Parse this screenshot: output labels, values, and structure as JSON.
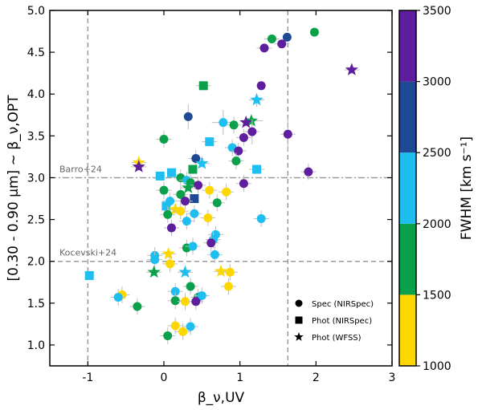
{
  "chart_data": {
    "type": "scatter",
    "xlabel": "β_ν,UV",
    "ylabel": "[0.30 - 0.90 μm] ~ β_ν,OPT",
    "xlim": [
      -1.5,
      3.0
    ],
    "ylim": [
      0.75,
      5.0
    ],
    "xticks": [
      -1,
      0,
      1,
      2,
      3
    ],
    "yticks": [
      1.0,
      1.5,
      2.0,
      2.5,
      3.0,
      3.5,
      4.0,
      4.5,
      5.0
    ],
    "reference_lines": [
      {
        "orientation": "horizontal",
        "value": 3.0,
        "style": "dashdot",
        "label": "Barro+24"
      },
      {
        "orientation": "horizontal",
        "value": 2.0,
        "style": "dashed",
        "label": "Kocevski+24"
      },
      {
        "orientation": "vertical",
        "value": -1.0,
        "style": "dashed"
      },
      {
        "orientation": "vertical",
        "value": 1.63,
        "style": "dashed"
      }
    ],
    "legend": {
      "position": "bottom-right",
      "entries": [
        {
          "marker": "circle",
          "label": "Spec (NIRSpec)"
        },
        {
          "marker": "square",
          "label": "Phot (NIRSpec)"
        },
        {
          "marker": "star",
          "label": "Phot (WFSS)"
        }
      ]
    },
    "colorbar": {
      "label": "FWHM [km s⁻¹]",
      "ticks": [
        1000,
        1500,
        2000,
        2500,
        3000,
        3500
      ],
      "bins": [
        {
          "min": 1000,
          "max": 1500,
          "color": "#FFD700"
        },
        {
          "min": 1500,
          "max": 2000,
          "color": "#0BA14B"
        },
        {
          "min": 2000,
          "max": 2500,
          "color": "#1EBEF0"
        },
        {
          "min": 2500,
          "max": 3000,
          "color": "#1F4A93"
        },
        {
          "min": 3000,
          "max": 3500,
          "color": "#5E1E9E"
        }
      ]
    },
    "points": [
      {
        "x": 1.62,
        "y": 4.68,
        "m": "circle",
        "c": "#1F4A93",
        "ex": 0.05,
        "ey": 0.05
      },
      {
        "x": 1.42,
        "y": 4.66,
        "m": "circle",
        "c": "#0BA14B",
        "ex": 0.1,
        "ey": 0.05
      },
      {
        "x": 1.55,
        "y": 4.6,
        "m": "circle",
        "c": "#5E1E9E",
        "ex": 0.1,
        "ey": 0.05
      },
      {
        "x": 1.32,
        "y": 4.55,
        "m": "circle",
        "c": "#5E1E9E",
        "ex": 0.1,
        "ey": 0.05
      },
      {
        "x": 1.98,
        "y": 4.74,
        "m": "circle",
        "c": "#0BA14B",
        "ex": 0.05,
        "ey": 0.05
      },
      {
        "x": 2.47,
        "y": 4.29,
        "m": "star",
        "c": "#5E1E9E",
        "ex": 0.1,
        "ey": 0.05
      },
      {
        "x": 1.28,
        "y": 4.1,
        "m": "circle",
        "c": "#5E1E9E",
        "ex": 0.05,
        "ey": 0.05
      },
      {
        "x": 0.52,
        "y": 4.1,
        "m": "square",
        "c": "#0BA14B",
        "ex": 0.1,
        "ey": 0.05
      },
      {
        "x": 1.22,
        "y": 3.93,
        "m": "star",
        "c": "#1EBEF0",
        "ex": 0.1,
        "ey": 0.08
      },
      {
        "x": 0.32,
        "y": 3.73,
        "m": "circle",
        "c": "#1F4A93",
        "ex": 0.05,
        "ey": 0.15
      },
      {
        "x": 1.15,
        "y": 3.68,
        "m": "star",
        "c": "#0BA14B",
        "ex": 0.15,
        "ey": 0.05
      },
      {
        "x": 1.08,
        "y": 3.66,
        "m": "star",
        "c": "#5E1E9E",
        "ex": 0.05,
        "ey": 0.05
      },
      {
        "x": 0.78,
        "y": 3.66,
        "m": "circle",
        "c": "#1EBEF0",
        "ex": 0.15,
        "ey": 0.15
      },
      {
        "x": 0.92,
        "y": 3.63,
        "m": "circle",
        "c": "#0BA14B",
        "ex": 0.1,
        "ey": 0.1
      },
      {
        "x": 1.16,
        "y": 3.55,
        "m": "circle",
        "c": "#5E1E9E",
        "ex": 0.1,
        "ey": 0.15
      },
      {
        "x": 1.63,
        "y": 3.52,
        "m": "circle",
        "c": "#5E1E9E",
        "ex": 0.1,
        "ey": 0.2
      },
      {
        "x": 1.05,
        "y": 3.48,
        "m": "circle",
        "c": "#5E1E9E",
        "ex": 0.1,
        "ey": 0.1
      },
      {
        "x": 0.0,
        "y": 3.46,
        "m": "circle",
        "c": "#0BA14B",
        "ex": 0.1,
        "ey": 0.1
      },
      {
        "x": 0.6,
        "y": 3.43,
        "m": "square",
        "c": "#1EBEF0",
        "ex": 0.1,
        "ey": 0.05
      },
      {
        "x": 0.9,
        "y": 3.36,
        "m": "circle",
        "c": "#1EBEF0",
        "ex": 0.1,
        "ey": 0.1
      },
      {
        "x": 0.98,
        "y": 3.32,
        "m": "circle",
        "c": "#5E1E9E",
        "ex": 0.1,
        "ey": 0.1
      },
      {
        "x": 0.42,
        "y": 3.23,
        "m": "circle",
        "c": "#1F4A93",
        "ex": 0.1,
        "ey": 0.1
      },
      {
        "x": 0.95,
        "y": 3.2,
        "m": "circle",
        "c": "#0BA14B",
        "ex": 0.1,
        "ey": 0.1
      },
      {
        "x": -0.33,
        "y": 3.18,
        "m": "star",
        "c": "#FFD700",
        "ex": 0.1,
        "ey": 0.05
      },
      {
        "x": 0.5,
        "y": 3.17,
        "m": "star",
        "c": "#1EBEF0",
        "ex": 0.1,
        "ey": 0.05
      },
      {
        "x": -0.33,
        "y": 3.13,
        "m": "star",
        "c": "#5E1E9E",
        "ex": 0.1,
        "ey": 0.05
      },
      {
        "x": 0.38,
        "y": 3.1,
        "m": "square",
        "c": "#0BA14B",
        "ex": 0.05,
        "ey": 0.05
      },
      {
        "x": 1.22,
        "y": 3.1,
        "m": "square",
        "c": "#1EBEF0",
        "ex": 0.1,
        "ey": 0.05
      },
      {
        "x": 1.9,
        "y": 3.07,
        "m": "circle",
        "c": "#5E1E9E",
        "ex": 0.1,
        "ey": 0.1
      },
      {
        "x": 0.1,
        "y": 3.06,
        "m": "square",
        "c": "#1EBEF0",
        "ex": 0.05,
        "ey": 0.05
      },
      {
        "x": -0.05,
        "y": 3.02,
        "m": "square",
        "c": "#1EBEF0",
        "ex": 0.05,
        "ey": 0.05
      },
      {
        "x": 0.22,
        "y": 3.0,
        "m": "circle",
        "c": "#0BA14B",
        "ex": 0.1,
        "ey": 0.1
      },
      {
        "x": 0.3,
        "y": 2.97,
        "m": "circle",
        "c": "#1EBEF0",
        "ex": 0.1,
        "ey": 0.1
      },
      {
        "x": 0.35,
        "y": 2.94,
        "m": "circle",
        "c": "#0BA14B",
        "ex": 0.1,
        "ey": 0.1
      },
      {
        "x": 1.05,
        "y": 2.93,
        "m": "circle",
        "c": "#5E1E9E",
        "ex": 0.1,
        "ey": 0.1
      },
      {
        "x": 0.45,
        "y": 2.91,
        "m": "circle",
        "c": "#5E1E9E",
        "ex": 0.1,
        "ey": 0.1
      },
      {
        "x": 0.32,
        "y": 2.88,
        "m": "star",
        "c": "#0BA14B",
        "ex": 0.1,
        "ey": 0.05
      },
      {
        "x": 0.82,
        "y": 2.83,
        "m": "circle",
        "c": "#FFD700",
        "ex": 0.1,
        "ey": 0.1
      },
      {
        "x": 0.0,
        "y": 2.85,
        "m": "circle",
        "c": "#0BA14B",
        "ex": 0.1,
        "ey": 0.1
      },
      {
        "x": 0.6,
        "y": 2.85,
        "m": "circle",
        "c": "#FFD700",
        "ex": 0.1,
        "ey": 0.1
      },
      {
        "x": 0.22,
        "y": 2.8,
        "m": "circle",
        "c": "#0BA14B",
        "ex": 0.1,
        "ey": 0.1
      },
      {
        "x": 0.4,
        "y": 2.75,
        "m": "square",
        "c": "#1F4A93",
        "ex": 0.05,
        "ey": 0.05
      },
      {
        "x": 0.08,
        "y": 2.72,
        "m": "circle",
        "c": "#1EBEF0",
        "ex": 0.1,
        "ey": 0.1
      },
      {
        "x": 0.28,
        "y": 2.72,
        "m": "circle",
        "c": "#5E1E9E",
        "ex": 0.1,
        "ey": 0.1
      },
      {
        "x": 0.7,
        "y": 2.7,
        "m": "circle",
        "c": "#0BA14B",
        "ex": 0.1,
        "ey": 0.1
      },
      {
        "x": 0.03,
        "y": 2.66,
        "m": "square",
        "c": "#1EBEF0",
        "ex": 0.05,
        "ey": 0.05
      },
      {
        "x": 0.15,
        "y": 2.62,
        "m": "star",
        "c": "#FFD700",
        "ex": 0.1,
        "ey": 0.05
      },
      {
        "x": 0.22,
        "y": 2.6,
        "m": "circle",
        "c": "#FFD700",
        "ex": 0.1,
        "ey": 0.1
      },
      {
        "x": 0.4,
        "y": 2.57,
        "m": "circle",
        "c": "#1EBEF0",
        "ex": 0.1,
        "ey": 0.1
      },
      {
        "x": 0.05,
        "y": 2.56,
        "m": "circle",
        "c": "#0BA14B",
        "ex": 0.1,
        "ey": 0.1
      },
      {
        "x": 0.58,
        "y": 2.52,
        "m": "circle",
        "c": "#FFD700",
        "ex": 0.1,
        "ey": 0.1
      },
      {
        "x": 1.28,
        "y": 2.51,
        "m": "circle",
        "c": "#1EBEF0",
        "ex": 0.1,
        "ey": 0.1
      },
      {
        "x": 0.3,
        "y": 2.48,
        "m": "circle",
        "c": "#1EBEF0",
        "ex": 0.1,
        "ey": 0.1
      },
      {
        "x": 0.1,
        "y": 2.4,
        "m": "circle",
        "c": "#5E1E9E",
        "ex": 0.1,
        "ey": 0.1
      },
      {
        "x": 0.68,
        "y": 2.32,
        "m": "circle",
        "c": "#1EBEF0",
        "ex": 0.1,
        "ey": 0.1
      },
      {
        "x": 0.65,
        "y": 2.26,
        "m": "circle",
        "c": "#1EBEF0",
        "ex": 0.1,
        "ey": 0.1
      },
      {
        "x": 0.62,
        "y": 2.22,
        "m": "circle",
        "c": "#5E1E9E",
        "ex": 0.1,
        "ey": 0.1
      },
      {
        "x": 0.3,
        "y": 2.16,
        "m": "circle",
        "c": "#0BA14B",
        "ex": 0.1,
        "ey": 0.1
      },
      {
        "x": 0.38,
        "y": 2.18,
        "m": "circle",
        "c": "#1EBEF0",
        "ex": 0.1,
        "ey": 0.1
      },
      {
        "x": 0.06,
        "y": 2.09,
        "m": "star",
        "c": "#FFD700",
        "ex": 0.1,
        "ey": 0.05
      },
      {
        "x": 0.67,
        "y": 2.08,
        "m": "circle",
        "c": "#1EBEF0",
        "ex": 0.1,
        "ey": 0.1
      },
      {
        "x": -0.12,
        "y": 2.07,
        "m": "circle",
        "c": "#1EBEF0",
        "ex": 0.1,
        "ey": 0.1
      },
      {
        "x": -0.12,
        "y": 2.02,
        "m": "circle",
        "c": "#1EBEF0",
        "ex": 0.1,
        "ey": 0.1
      },
      {
        "x": 0.08,
        "y": 1.97,
        "m": "circle",
        "c": "#FFD700",
        "ex": 0.1,
        "ey": 0.1
      },
      {
        "x": -0.98,
        "y": 1.83,
        "m": "square",
        "c": "#1EBEF0",
        "ex": 0.05,
        "ey": 0.05
      },
      {
        "x": -0.13,
        "y": 1.87,
        "m": "star",
        "c": "#0BA14B",
        "ex": 0.1,
        "ey": 0.05
      },
      {
        "x": 0.28,
        "y": 1.87,
        "m": "star",
        "c": "#1EBEF0",
        "ex": 0.1,
        "ey": 0.05
      },
      {
        "x": 0.75,
        "y": 1.88,
        "m": "star",
        "c": "#FFD700",
        "ex": 0.1,
        "ey": 0.05
      },
      {
        "x": 0.87,
        "y": 1.87,
        "m": "circle",
        "c": "#FFD700",
        "ex": 0.1,
        "ey": 0.1
      },
      {
        "x": 0.35,
        "y": 1.7,
        "m": "circle",
        "c": "#0BA14B",
        "ex": 0.1,
        "ey": 0.1
      },
      {
        "x": 0.85,
        "y": 1.7,
        "m": "circle",
        "c": "#FFD700",
        "ex": 0.1,
        "ey": 0.1
      },
      {
        "x": 0.15,
        "y": 1.64,
        "m": "circle",
        "c": "#1EBEF0",
        "ex": 0.1,
        "ey": 0.1
      },
      {
        "x": -0.55,
        "y": 1.6,
        "m": "circle",
        "c": "#FFD700",
        "ex": 0.1,
        "ey": 0.1
      },
      {
        "x": -0.6,
        "y": 1.57,
        "m": "circle",
        "c": "#1EBEF0",
        "ex": 0.1,
        "ey": 0.1
      },
      {
        "x": 0.45,
        "y": 1.57,
        "m": "circle",
        "c": "#0BA14B",
        "ex": 0.1,
        "ey": 0.1
      },
      {
        "x": 0.5,
        "y": 1.59,
        "m": "circle",
        "c": "#1EBEF0",
        "ex": 0.1,
        "ey": 0.1
      },
      {
        "x": 0.15,
        "y": 1.53,
        "m": "circle",
        "c": "#0BA14B",
        "ex": 0.1,
        "ey": 0.1
      },
      {
        "x": 0.28,
        "y": 1.52,
        "m": "circle",
        "c": "#FFD700",
        "ex": 0.1,
        "ey": 0.1
      },
      {
        "x": 0.42,
        "y": 1.52,
        "m": "circle",
        "c": "#5E1E9E",
        "ex": 0.1,
        "ey": 0.1
      },
      {
        "x": -0.35,
        "y": 1.46,
        "m": "circle",
        "c": "#0BA14B",
        "ex": 0.1,
        "ey": 0.1
      },
      {
        "x": 0.15,
        "y": 1.23,
        "m": "circle",
        "c": "#FFD700",
        "ex": 0.1,
        "ey": 0.1
      },
      {
        "x": 0.35,
        "y": 1.22,
        "m": "circle",
        "c": "#1EBEF0",
        "ex": 0.1,
        "ey": 0.1
      },
      {
        "x": 0.25,
        "y": 1.16,
        "m": "circle",
        "c": "#FFD700",
        "ex": 0.1,
        "ey": 0.1
      },
      {
        "x": 0.05,
        "y": 1.11,
        "m": "circle",
        "c": "#0BA14B",
        "ex": 0.1,
        "ey": 0.1
      }
    ]
  }
}
